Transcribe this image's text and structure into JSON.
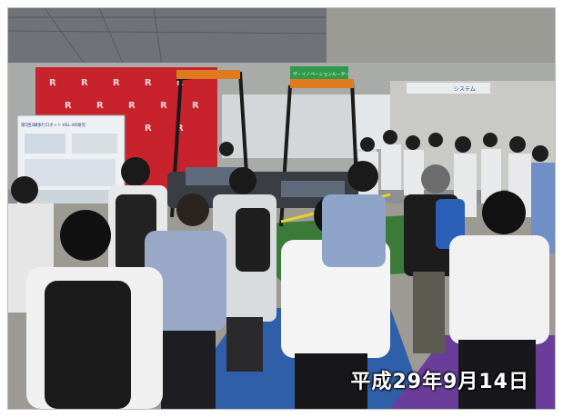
{
  "photo": {
    "date_stamp": "平成29年9月14日",
    "booth_sign_green": "ザ・イノベーションルーター",
    "booth_sign_right": "システム",
    "poster_text": "第5回4脚歩行ロボット HSL-4の研究",
    "colors": {
      "backdrop_red": "#c8222c",
      "floor_green": "#3c7a3a",
      "carpet_blue": "#2f5fa8",
      "carpet_purple": "#6a3d9a",
      "ceiling": "#6f7378"
    }
  }
}
